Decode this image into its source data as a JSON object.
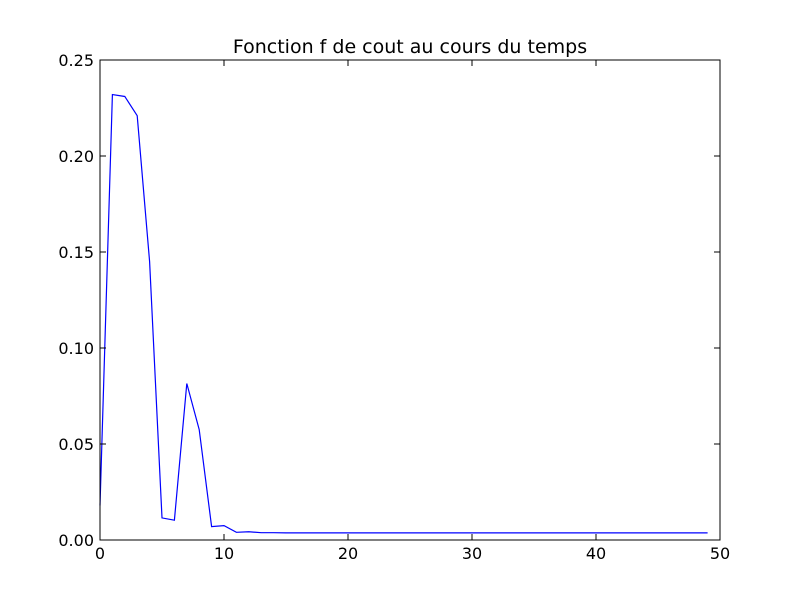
{
  "chart_data": {
    "type": "line",
    "title": "Fonction f de cout au cours du temps",
    "xlabel": "",
    "ylabel": "",
    "xlim": [
      0,
      50
    ],
    "ylim": [
      0,
      0.25
    ],
    "grid": false,
    "x_ticks": [
      0,
      10,
      20,
      30,
      40,
      50
    ],
    "x_tick_labels": [
      "0",
      "10",
      "20",
      "30",
      "40",
      "50"
    ],
    "y_ticks": [
      0,
      0.05,
      0.1,
      0.15,
      0.2,
      0.25
    ],
    "y_tick_labels": [
      "0.00",
      "0.05",
      "0.10",
      "0.15",
      "0.20",
      "0.25"
    ],
    "series": [
      {
        "color": "#0000ff",
        "x": [
          0,
          1,
          2,
          3,
          4,
          5,
          6,
          7,
          8,
          9,
          10,
          11,
          12,
          13,
          14,
          15,
          16,
          17,
          18,
          19,
          20,
          21,
          22,
          23,
          24,
          25,
          26,
          27,
          28,
          29,
          30,
          31,
          32,
          33,
          34,
          35,
          36,
          37,
          38,
          39,
          40,
          41,
          42,
          43,
          44,
          45,
          46,
          47,
          48,
          49
        ],
        "y": [
          0.018,
          0.232,
          0.231,
          0.221,
          0.145,
          0.0115,
          0.0103,
          0.0815,
          0.0575,
          0.007,
          0.0075,
          0.004,
          0.0043,
          0.0038,
          0.0038,
          0.0037,
          0.0037,
          0.0037,
          0.0037,
          0.0037,
          0.0037,
          0.0037,
          0.0037,
          0.0037,
          0.0037,
          0.0037,
          0.0037,
          0.0037,
          0.0037,
          0.0037,
          0.0037,
          0.0037,
          0.0037,
          0.0037,
          0.0037,
          0.0037,
          0.0037,
          0.0037,
          0.0037,
          0.0037,
          0.0037,
          0.0037,
          0.0037,
          0.0037,
          0.0037,
          0.0037,
          0.0037,
          0.0037,
          0.0037,
          0.0037
        ]
      }
    ]
  }
}
